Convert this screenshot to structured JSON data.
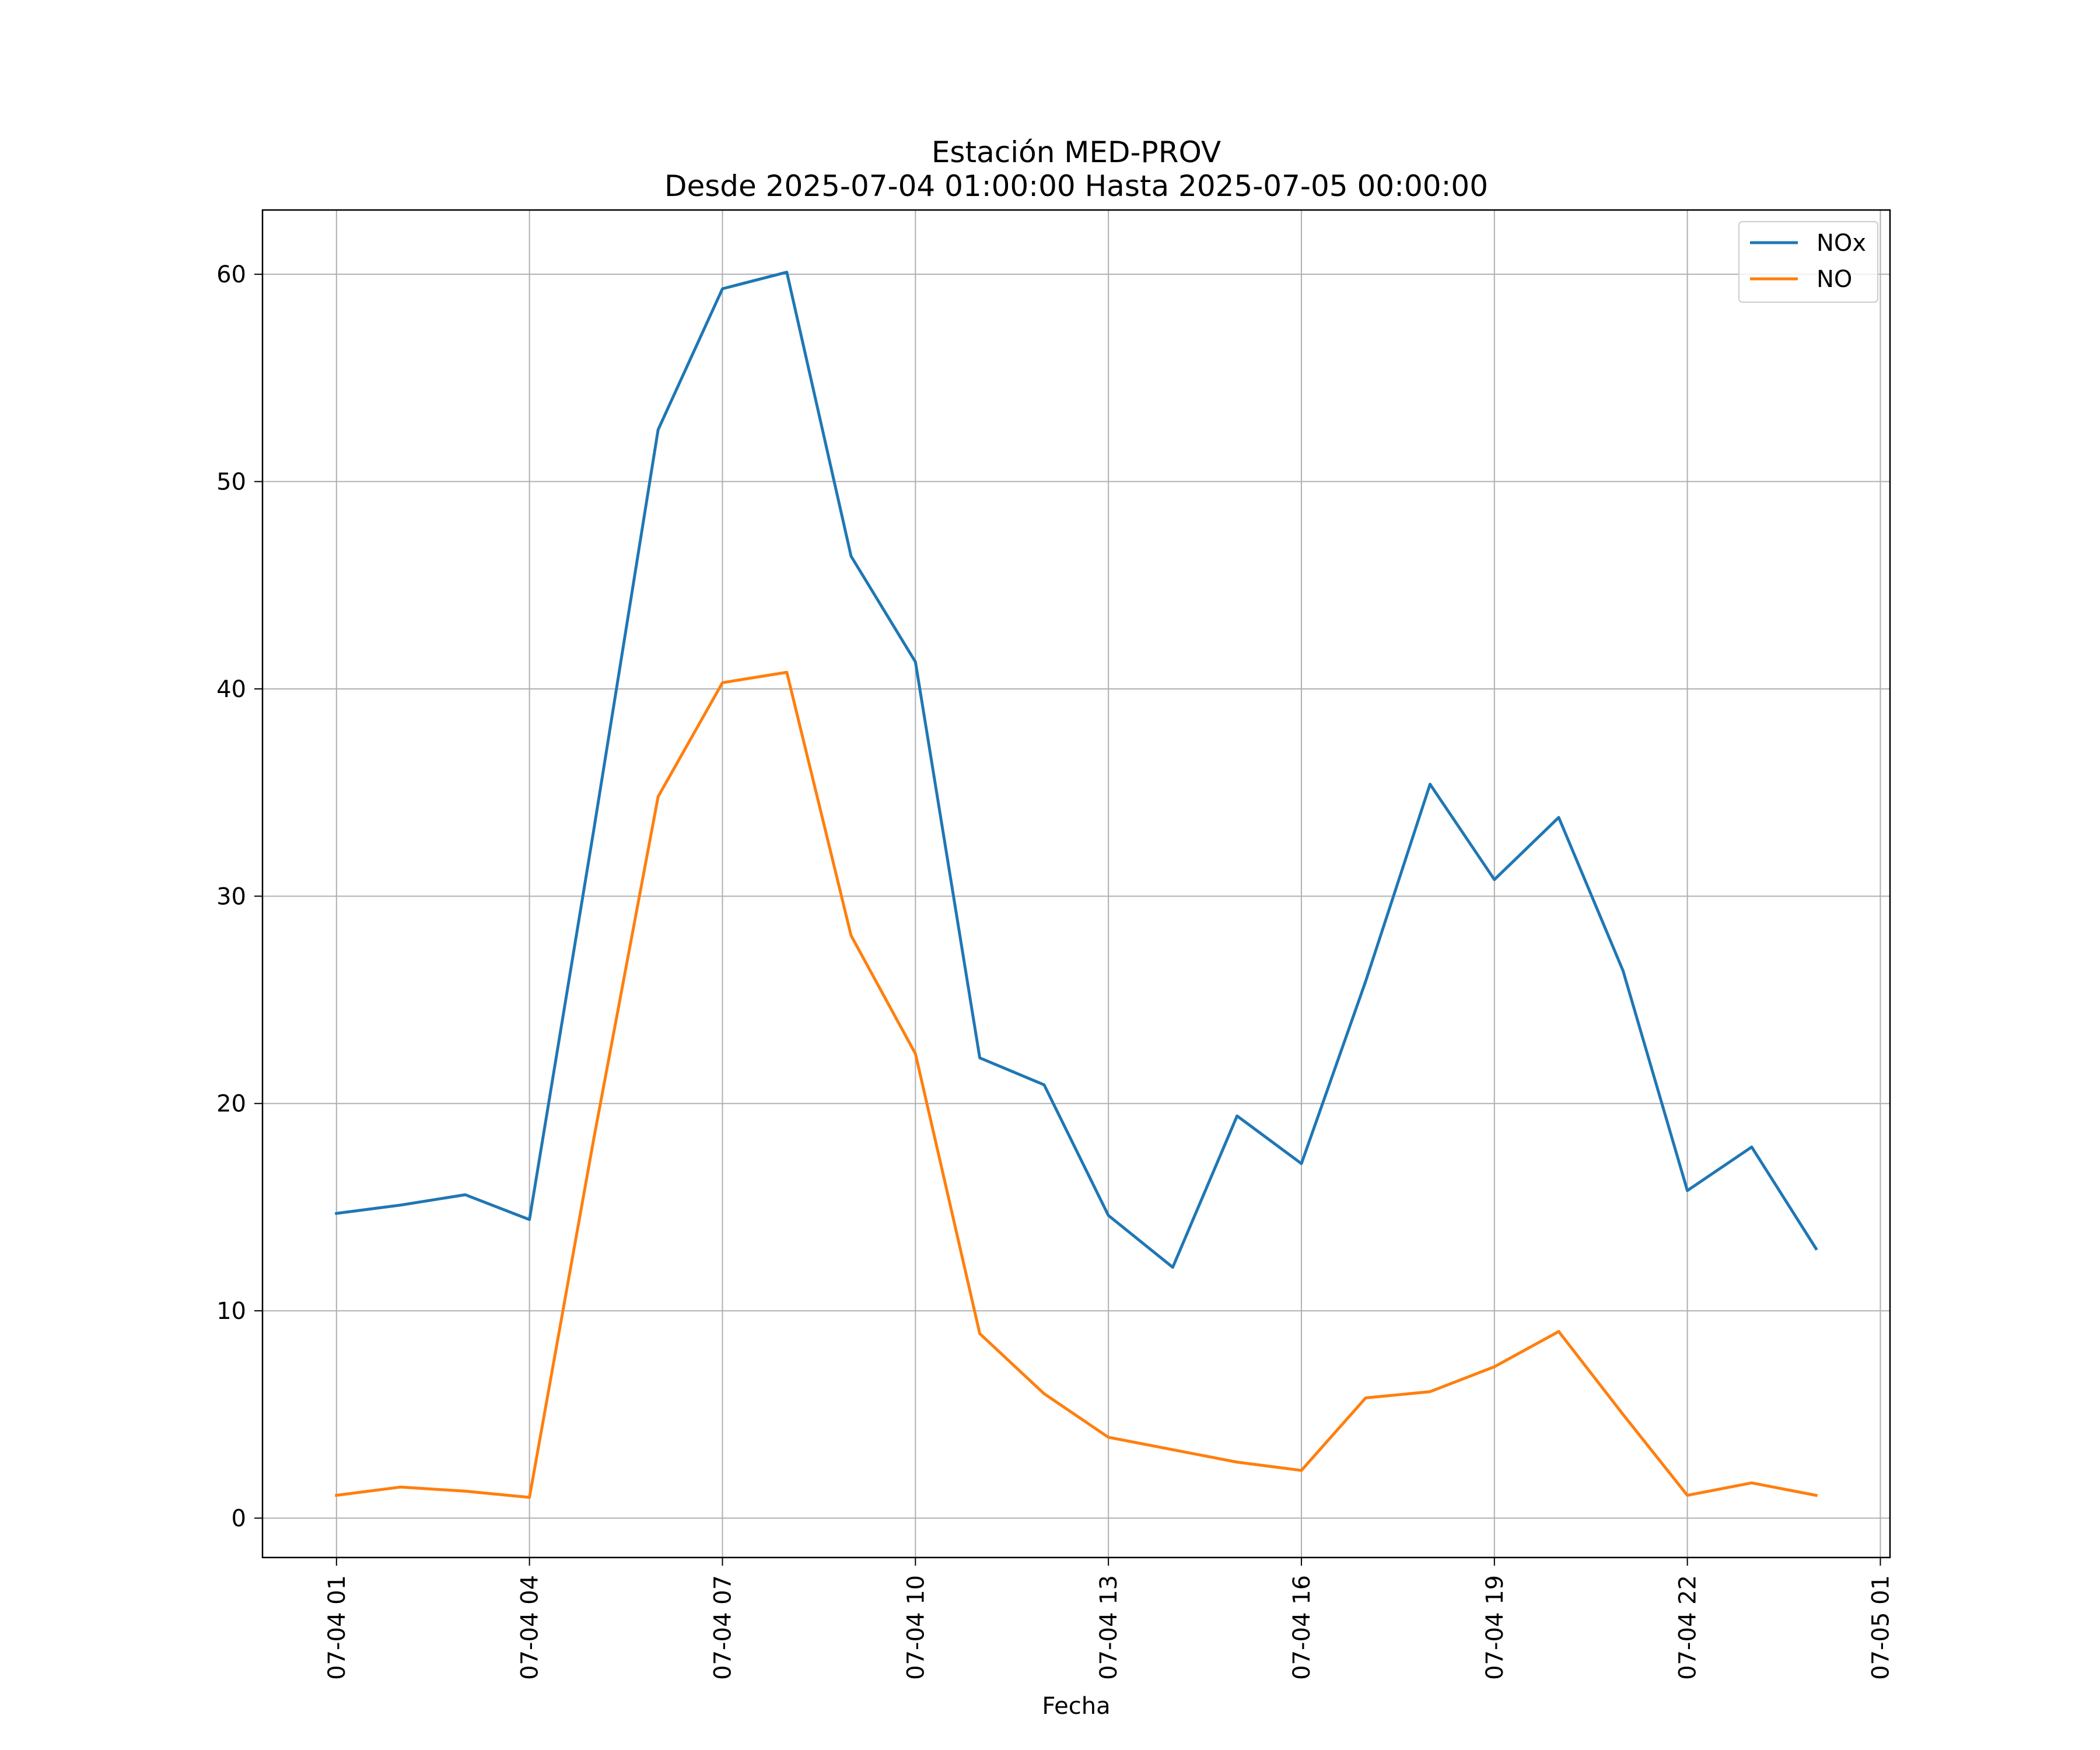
{
  "chart_data": {
    "type": "line",
    "title": "Estación MED-PROV",
    "subtitle": "Desde 2025-07-04 01:00:00 Hasta 2025-07-05 00:00:00",
    "xlabel": "Fecha",
    "ylabel": "",
    "x": [
      "2025-07-04 01:00",
      "2025-07-04 02:00",
      "2025-07-04 03:00",
      "2025-07-04 04:00",
      "2025-07-04 05:00",
      "2025-07-04 06:00",
      "2025-07-04 07:00",
      "2025-07-04 08:00",
      "2025-07-04 09:00",
      "2025-07-04 10:00",
      "2025-07-04 11:00",
      "2025-07-04 12:00",
      "2025-07-04 13:00",
      "2025-07-04 14:00",
      "2025-07-04 15:00",
      "2025-07-04 16:00",
      "2025-07-04 17:00",
      "2025-07-04 18:00",
      "2025-07-04 19:00",
      "2025-07-04 20:00",
      "2025-07-04 21:00",
      "2025-07-04 22:00",
      "2025-07-04 23:00",
      "2025-07-05 00:00"
    ],
    "series": [
      {
        "name": "NOx",
        "color": "#1f77b4",
        "values": [
          14.7,
          15.1,
          15.6,
          14.4,
          33.2,
          52.5,
          59.3,
          60.1,
          46.4,
          41.3,
          22.2,
          20.9,
          14.6,
          12.1,
          19.4,
          17.1,
          25.9,
          35.4,
          30.8,
          33.8,
          26.4,
          15.8,
          17.9,
          13.0
        ]
      },
      {
        "name": "NO",
        "color": "#ff7f0e",
        "values": [
          1.1,
          1.5,
          1.3,
          1.0,
          18.3,
          34.8,
          40.3,
          40.8,
          28.1,
          22.4,
          8.9,
          6.0,
          3.9,
          3.3,
          2.7,
          2.3,
          5.8,
          6.1,
          7.3,
          9.0,
          5.0,
          1.1,
          1.7,
          1.1
        ]
      }
    ],
    "xticks": [
      {
        "value": "2025-07-04 01:00",
        "label": "07-04 01"
      },
      {
        "value": "2025-07-04 04:00",
        "label": "07-04 04"
      },
      {
        "value": "2025-07-04 07:00",
        "label": "07-04 07"
      },
      {
        "value": "2025-07-04 10:00",
        "label": "07-04 10"
      },
      {
        "value": "2025-07-04 13:00",
        "label": "07-04 13"
      },
      {
        "value": "2025-07-04 16:00",
        "label": "07-04 16"
      },
      {
        "value": "2025-07-04 19:00",
        "label": "07-04 19"
      },
      {
        "value": "2025-07-04 22:00",
        "label": "07-04 22"
      },
      {
        "value": "2025-07-05 01:00",
        "label": "07-05 01"
      }
    ],
    "yticks": [
      0,
      10,
      20,
      30,
      40,
      50,
      60
    ],
    "xlim": [
      "2025-07-03 23:51",
      "2025-07-05 01:09"
    ],
    "ylim": [
      -1.9,
      63.1
    ],
    "grid": true,
    "legend": "top-right"
  }
}
